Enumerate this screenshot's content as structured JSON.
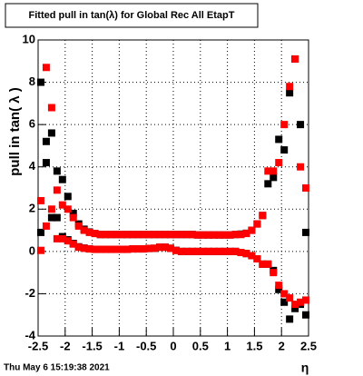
{
  "chart_data": {
    "type": "scatter",
    "title": "Fitted pull in tan(λ) for Global Rec All EtapT",
    "y_label": "pull in tan( λ )",
    "x_label": "η",
    "timestamp": "Thu May  6 15:19:38 2021",
    "xlim": [
      -2.5,
      2.5
    ],
    "xticks": [
      -2.5,
      -2,
      -1.5,
      -1,
      -0.5,
      0,
      0.5,
      1,
      1.5,
      2,
      2.5
    ],
    "ylim": [
      -4,
      10
    ],
    "yticks": [
      -4,
      -2,
      0,
      2,
      4,
      6,
      8,
      10
    ],
    "grid": true,
    "x": [
      -2.45,
      -2.35,
      -2.25,
      -2.15,
      -2.05,
      -1.95,
      -1.85,
      -1.75,
      -1.65,
      -1.55,
      -1.45,
      -1.35,
      -1.25,
      -1.15,
      -1.05,
      -0.95,
      -0.85,
      -0.75,
      -0.65,
      -0.55,
      -0.45,
      -0.35,
      -0.25,
      -0.15,
      -0.05,
      0.05,
      0.15,
      0.25,
      0.35,
      0.45,
      0.55,
      0.65,
      0.75,
      0.85,
      0.95,
      1.05,
      1.15,
      1.25,
      1.35,
      1.45,
      1.55,
      1.65,
      1.75,
      1.85,
      1.95,
      2.05,
      2.15,
      2.25,
      2.35,
      2.45
    ],
    "series": [
      {
        "color": "#000000",
        "values": [
          8.0,
          5.2,
          5.6,
          3.8,
          3.4,
          2.6,
          1.8,
          1.3,
          1.05,
          0.92,
          0.85,
          0.8,
          0.8,
          0.8,
          0.8,
          0.8,
          0.8,
          0.8,
          0.8,
          0.8,
          0.8,
          0.8,
          0.8,
          0.8,
          0.8,
          0.8,
          0.8,
          0.8,
          0.8,
          0.78,
          0.78,
          0.78,
          0.78,
          0.78,
          0.78,
          0.78,
          0.8,
          0.82,
          0.86,
          1.0,
          1.3,
          1.7,
          3.2,
          3.5,
          5.3,
          4.8,
          7.5,
          9.1,
          6.0,
          0.9
        ]
      },
      {
        "color": "#000000",
        "values": [
          0.9,
          4.2,
          1.6,
          1.6,
          0.7,
          0.55,
          0.38,
          0.22,
          0.16,
          0.12,
          0.1,
          0.1,
          0.1,
          0.1,
          0.1,
          0.1,
          0.1,
          0.12,
          0.12,
          0.12,
          0.14,
          0.15,
          0.2,
          0.2,
          0.15,
          0.05,
          0.0,
          0.0,
          0.0,
          0.0,
          0.0,
          0.0,
          0.0,
          0.0,
          0.0,
          0.0,
          0.0,
          -0.05,
          -0.1,
          -0.2,
          -0.35,
          -0.6,
          -0.6,
          -0.9,
          -1.8,
          -2.4,
          -3.2,
          -2.7,
          -2.5,
          -3.0
        ]
      },
      {
        "color": "#ff0000",
        "values": [
          2.4,
          8.7,
          6.8,
          2.9,
          2.2,
          2.0,
          1.6,
          1.2,
          1.0,
          0.9,
          0.85,
          0.8,
          0.8,
          0.8,
          0.8,
          0.8,
          0.8,
          0.8,
          0.8,
          0.8,
          0.8,
          0.8,
          0.8,
          0.8,
          0.8,
          0.8,
          0.8,
          0.8,
          0.8,
          0.78,
          0.78,
          0.78,
          0.78,
          0.78,
          0.78,
          0.78,
          0.8,
          0.8,
          0.85,
          1.0,
          1.3,
          1.7,
          3.8,
          3.8,
          4.2,
          6.0,
          7.8,
          9.1,
          4.0,
          3.0
        ]
      },
      {
        "color": "#ff0000",
        "values": [
          0.05,
          1.2,
          2.0,
          0.6,
          0.6,
          0.5,
          0.35,
          0.2,
          0.15,
          0.12,
          0.1,
          0.1,
          0.1,
          0.1,
          0.1,
          0.1,
          0.1,
          0.12,
          0.12,
          0.12,
          0.14,
          0.15,
          0.2,
          0.2,
          0.15,
          0.05,
          0.0,
          0.0,
          0.0,
          0.0,
          0.0,
          0.0,
          0.0,
          0.0,
          0.0,
          0.0,
          0.0,
          -0.05,
          -0.1,
          -0.2,
          -0.35,
          -0.6,
          -0.6,
          -1.0,
          -1.6,
          -2.0,
          -2.2,
          -2.5,
          -2.4,
          -2.3
        ]
      }
    ]
  }
}
